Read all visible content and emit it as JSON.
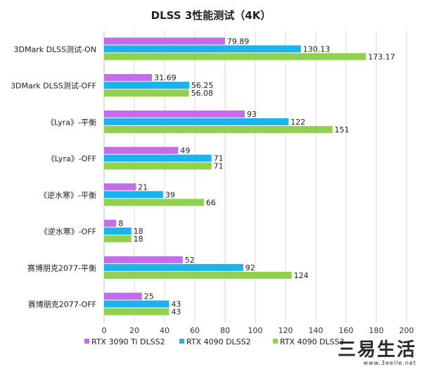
{
  "chart_data": {
    "type": "bar",
    "orientation": "horizontal",
    "title": "DLSS 3性能测试（4K）",
    "categories": [
      "3DMark DLSS测试-ON",
      "3DMark DLSS测试-OFF",
      "《Lyra》-平衡",
      "《Lyra》-OFF",
      "《逆水寒》-平衡",
      "《逆水寒》-OFF",
      "赛博朋克2077-平衡",
      "赛博朋克2077-OFF"
    ],
    "series": [
      {
        "name": "RTX 3090 Ti  DLSS2",
        "color": "#c36ee8",
        "values": [
          79.89,
          31.69,
          93,
          49,
          21,
          8,
          52,
          25
        ]
      },
      {
        "name": "RTX 4090  DLSS2",
        "color": "#19b3ee",
        "values": [
          130.13,
          56.25,
          122,
          71,
          39,
          18,
          92,
          43
        ]
      },
      {
        "name": "RTX 4090 DLSS3",
        "color": "#92d050",
        "values": [
          173.17,
          56.08,
          151,
          71,
          66,
          18,
          124,
          43
        ]
      }
    ],
    "xlim": [
      0,
      200
    ],
    "xticks": [
      0,
      20,
      40,
      60,
      80,
      100,
      120,
      140,
      160,
      180,
      200
    ],
    "grid": true,
    "legend": "bottom"
  },
  "watermark": {
    "brand": "三易生活",
    "site": "www.3eelle.net"
  }
}
